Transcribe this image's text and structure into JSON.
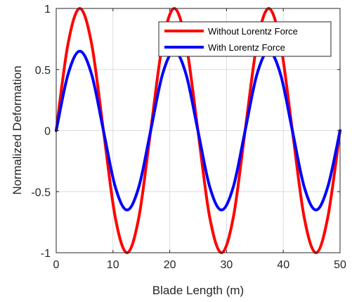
{
  "chart_data": {
    "type": "line",
    "title": "",
    "xlabel": "Blade Length (m)",
    "ylabel": "Normalized Deformation",
    "xlim": [
      0,
      50
    ],
    "ylim": [
      -1,
      1
    ],
    "x_ticks": [
      0,
      10,
      20,
      30,
      40,
      50
    ],
    "x_tick_labels": [
      "0",
      "10",
      "20",
      "30",
      "40",
      "50"
    ],
    "y_ticks": [
      -1,
      -0.5,
      0,
      0.5,
      1
    ],
    "y_tick_labels": [
      "-1",
      "-0.5",
      "0",
      "0.5",
      "1"
    ],
    "grid": true,
    "legend_position": "top-right",
    "series": [
      {
        "name": "Without Lorentz Force",
        "color": "#ff0000",
        "x": [
          0,
          2.08,
          4.16,
          6.24,
          8.32,
          10.4,
          12.48,
          14.56,
          16.64,
          18.72,
          20.8,
          22.88,
          24.96,
          27.04,
          29.12,
          31.2,
          33.28,
          35.36,
          37.44,
          39.52,
          41.6,
          43.68,
          45.76,
          47.84,
          50
        ],
        "y": [
          0,
          0.71,
          1,
          0.71,
          0,
          -0.71,
          -1,
          -0.71,
          0,
          0.71,
          1,
          0.71,
          0,
          -0.71,
          -1,
          -0.71,
          0,
          0.71,
          1,
          0.71,
          0,
          -0.71,
          -1,
          -0.71,
          0
        ]
      },
      {
        "name": "With Lorentz Force",
        "color": "#0000ff",
        "x": [
          0,
          2.08,
          4.16,
          6.24,
          8.32,
          10.4,
          12.48,
          14.56,
          16.64,
          18.72,
          20.8,
          22.88,
          24.96,
          27.04,
          29.12,
          31.2,
          33.28,
          35.36,
          37.44,
          39.52,
          41.6,
          43.68,
          45.76,
          47.84,
          50
        ],
        "y": [
          0,
          0.46,
          0.65,
          0.46,
          0,
          -0.46,
          -0.65,
          -0.46,
          0,
          0.46,
          0.65,
          0.46,
          0,
          -0.46,
          -0.65,
          -0.46,
          0,
          0.46,
          0.65,
          0.46,
          0,
          -0.46,
          -0.65,
          -0.46,
          0
        ]
      }
    ]
  }
}
